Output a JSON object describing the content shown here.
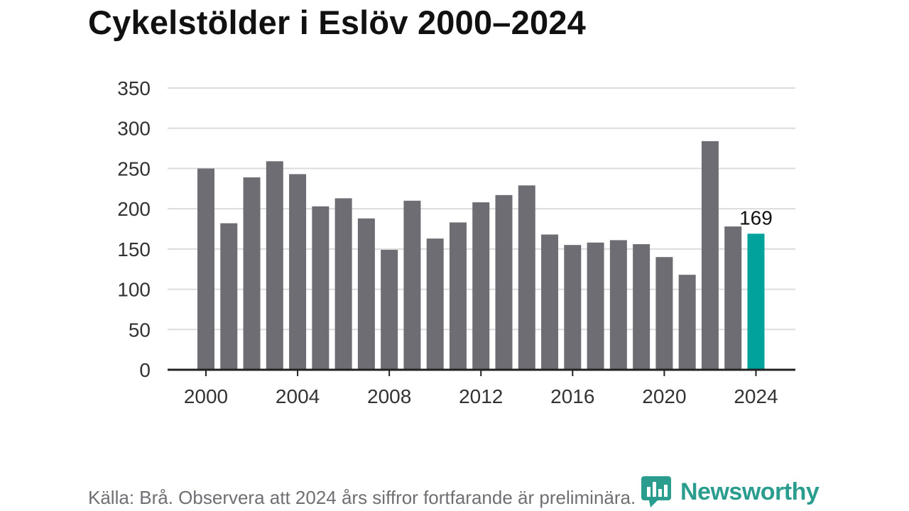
{
  "title": "Cykelstölder i Eslöv 2000–2024",
  "source": "Källa: Brå. Observera att 2024 års siffror fortfarande är preliminära.",
  "brand": {
    "name": "Newsworthy",
    "icon": "newsworthy-logo-icon",
    "color": "#2a9d8f"
  },
  "chart_data": {
    "type": "bar",
    "x": [
      2000,
      2001,
      2002,
      2003,
      2004,
      2005,
      2006,
      2007,
      2008,
      2009,
      2010,
      2011,
      2012,
      2013,
      2014,
      2015,
      2016,
      2017,
      2018,
      2019,
      2020,
      2021,
      2022,
      2023,
      2024
    ],
    "values": [
      250,
      182,
      239,
      259,
      243,
      203,
      213,
      188,
      149,
      210,
      163,
      183,
      208,
      217,
      229,
      168,
      155,
      158,
      161,
      156,
      140,
      118,
      284,
      178,
      169
    ],
    "xticks": [
      2000,
      2004,
      2008,
      2012,
      2016,
      2020,
      2024
    ],
    "yticks": [
      0,
      50,
      100,
      150,
      200,
      250,
      300,
      350
    ],
    "ylim": [
      0,
      350
    ],
    "grid": true,
    "bar_color": "#6e6d73",
    "highlight_color": "#00a29b",
    "highlight_index": 24,
    "data_label": {
      "index": 24,
      "text": "169"
    }
  }
}
